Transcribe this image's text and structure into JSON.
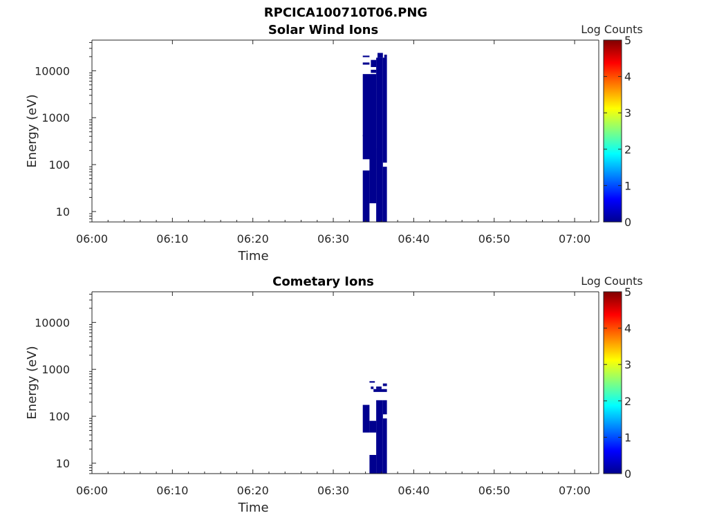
{
  "figure": {
    "title": "RPCICA100710T06.PNG"
  },
  "colormap": [
    "#00008f",
    "#0000ff",
    "#0080ff",
    "#00ffff",
    "#80ff80",
    "#ffff00",
    "#ff8000",
    "#ff0000",
    "#800000"
  ],
  "chart_data": [
    {
      "type": "heatmap",
      "title": "Solar Wind Ions",
      "xlabel": "Time",
      "ylabel": "Energy (eV)",
      "yscale": "log",
      "xlim": [
        "06:00",
        "07:03"
      ],
      "ylim": [
        6,
        45000
      ],
      "x_ticks": [
        "06:00",
        "06:10",
        "06:20",
        "06:30",
        "06:40",
        "06:50",
        "07:00"
      ],
      "y_ticks": [
        "10",
        "100",
        "1000",
        "10000"
      ],
      "colorbar": {
        "label": "Log Counts",
        "range": [
          0,
          5
        ],
        "ticks": [
          "0",
          "1",
          "2",
          "3",
          "4",
          "5"
        ]
      },
      "cells": [
        {
          "t0": "06:33:40",
          "t1": "06:34:30",
          "e0": 6,
          "e1": 75,
          "log_counts": 0
        },
        {
          "t0": "06:34:30",
          "t1": "06:35:20",
          "e0": 15,
          "e1": 220,
          "log_counts": 0
        },
        {
          "t0": "06:35:20",
          "t1": "06:36:10",
          "e0": 6,
          "e1": 19000,
          "log_counts": 0
        },
        {
          "t0": "06:36:10",
          "t1": "06:36:40",
          "e0": 6,
          "e1": 90,
          "log_counts": 0
        },
        {
          "t0": "06:36:10",
          "t1": "06:36:40",
          "e0": 110,
          "e1": 19000,
          "log_counts": 0
        },
        {
          "t0": "06:33:40",
          "t1": "06:35:20",
          "e0": 130,
          "e1": 8500,
          "log_counts": 0
        },
        {
          "t0": "06:33:40",
          "t1": "06:34:30",
          "e0": 400,
          "e1": 430,
          "log_counts": 0
        },
        {
          "t0": "06:34:40",
          "t1": "06:35:20",
          "e0": 12000,
          "e1": 17000,
          "log_counts": 0
        },
        {
          "t0": "06:35:30",
          "t1": "06:36:10",
          "e0": 19000,
          "e1": 24000,
          "log_counts": 0
        },
        {
          "t0": "06:36:20",
          "t1": "06:36:40",
          "e0": 19000,
          "e1": 22000,
          "log_counts": 0
        },
        {
          "t0": "06:33:40",
          "t1": "06:34:30",
          "e0": 13500,
          "e1": 15000,
          "log_counts": 0
        },
        {
          "t0": "06:33:40",
          "t1": "06:34:30",
          "e0": 19500,
          "e1": 21000,
          "log_counts": 0
        },
        {
          "t0": "06:34:40",
          "t1": "06:35:20",
          "e0": 9000,
          "e1": 10500,
          "log_counts": 0
        }
      ]
    },
    {
      "type": "heatmap",
      "title": "Cometary Ions",
      "xlabel": "Time",
      "ylabel": "Energy (eV)",
      "yscale": "log",
      "xlim": [
        "06:00",
        "07:03"
      ],
      "ylim": [
        6,
        45000
      ],
      "x_ticks": [
        "06:00",
        "06:10",
        "06:20",
        "06:30",
        "06:40",
        "06:50",
        "07:00"
      ],
      "y_ticks": [
        "10",
        "100",
        "1000",
        "10000"
      ],
      "colorbar": {
        "label": "Log Counts",
        "range": [
          0,
          5
        ],
        "ticks": [
          "0",
          "1",
          "2",
          "3",
          "4",
          "5"
        ]
      },
      "cells": [
        {
          "t0": "06:33:40",
          "t1": "06:34:30",
          "e0": 45,
          "e1": 175,
          "log_counts": 0
        },
        {
          "t0": "06:34:30",
          "t1": "06:35:20",
          "e0": 45,
          "e1": 80,
          "log_counts": 0
        },
        {
          "t0": "06:34:30",
          "t1": "06:35:20",
          "e0": 6,
          "e1": 15,
          "log_counts": 0
        },
        {
          "t0": "06:35:20",
          "t1": "06:36:10",
          "e0": 6,
          "e1": 220,
          "log_counts": 0
        },
        {
          "t0": "06:36:10",
          "t1": "06:36:40",
          "e0": 6,
          "e1": 90,
          "log_counts": 0
        },
        {
          "t0": "06:36:10",
          "t1": "06:36:40",
          "e0": 110,
          "e1": 220,
          "log_counts": 0
        },
        {
          "t0": "06:35:00",
          "t1": "06:36:40",
          "e0": 330,
          "e1": 380,
          "log_counts": 0
        },
        {
          "t0": "06:35:20",
          "t1": "06:36:00",
          "e0": 380,
          "e1": 430,
          "log_counts": 0
        },
        {
          "t0": "06:34:40",
          "t1": "06:35:00",
          "e0": 380,
          "e1": 430,
          "log_counts": 0
        },
        {
          "t0": "06:34:30",
          "t1": "06:35:10",
          "e0": 520,
          "e1": 560,
          "log_counts": 0
        },
        {
          "t0": "06:36:10",
          "t1": "06:36:40",
          "e0": 440,
          "e1": 500,
          "log_counts": 0
        }
      ]
    }
  ]
}
